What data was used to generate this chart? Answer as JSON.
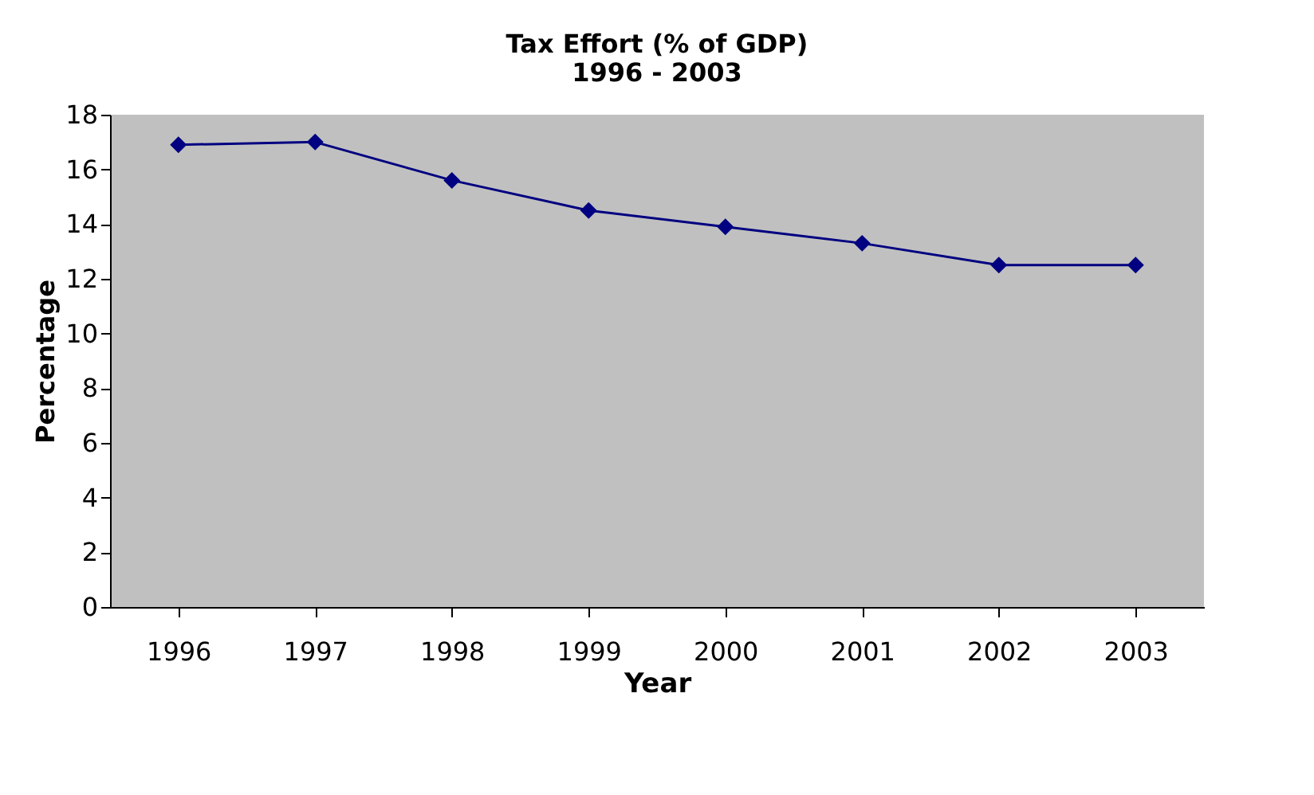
{
  "chart_data": {
    "type": "line",
    "title": [
      "Tax Effort (% of GDP)",
      "1996 - 2003"
    ],
    "xlabel": "Year",
    "ylabel": "Percentage",
    "categories": [
      "1996",
      "1997",
      "1998",
      "1999",
      "2000",
      "2001",
      "2002",
      "2003"
    ],
    "series": [
      {
        "color": "#000080",
        "values": [
          16.9,
          17.0,
          15.6,
          14.5,
          13.9,
          13.3,
          12.5,
          12.5
        ]
      }
    ],
    "ylim": [
      0,
      18
    ],
    "yticks": [
      0,
      2,
      4,
      6,
      8,
      10,
      12,
      14,
      16,
      18
    ],
    "grid": false,
    "marker": "diamond",
    "line_style": "solid"
  }
}
